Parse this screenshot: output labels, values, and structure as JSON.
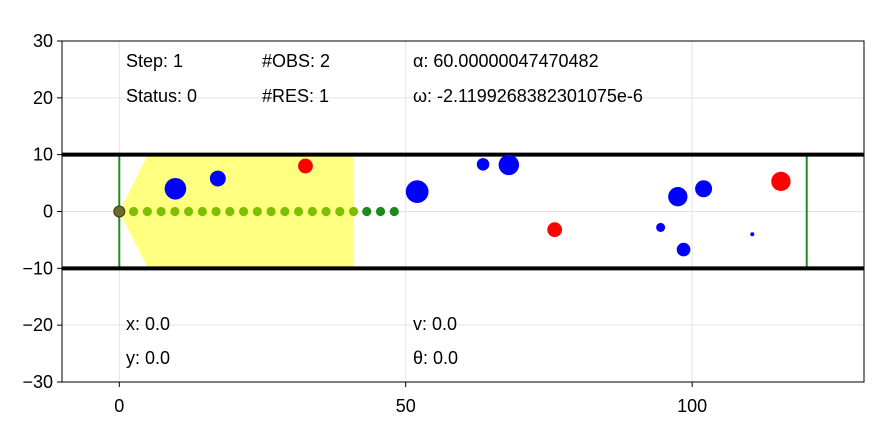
{
  "chart_data": {
    "type": "scatter",
    "xlim": [
      -10,
      130
    ],
    "ylim": [
      -30,
      30
    ],
    "x_ticks": [
      0,
      50,
      100
    ],
    "y_ticks": [
      30,
      20,
      10,
      0,
      -10,
      -20,
      -30
    ],
    "x_tick_labels": [
      "0",
      "50",
      "100"
    ],
    "y_tick_labels": [
      "30",
      "20",
      "10",
      "0",
      "−10",
      "−20",
      "−30"
    ],
    "grid": true,
    "walls": {
      "top_y": 10,
      "bottom_y": -10,
      "x_from": -10,
      "x_to": 130,
      "color": "#000000"
    },
    "start_line_x": 0,
    "goal_line_x": 120,
    "boundary_color": "#228b22",
    "view_region": {
      "color": "#ffff80",
      "points": [
        [
          0,
          0
        ],
        [
          5,
          10
        ],
        [
          41,
          10
        ],
        [
          41,
          -10
        ],
        [
          5,
          -10
        ]
      ]
    },
    "agent": {
      "x": 0,
      "y": 0,
      "color": "#6b6b2a"
    },
    "trajectory": {
      "light_color": "#7fbf00",
      "dark_color": "#1a8a1a",
      "light_x": [
        2.5,
        4.9,
        7.3,
        9.7,
        12.1,
        14.5,
        16.9,
        19.3,
        21.7,
        24.1,
        26.5,
        28.9,
        31.3,
        33.7,
        36.1,
        38.5,
        40.9
      ],
      "dark_x": [
        43.2,
        45.6,
        48.0
      ],
      "y": 0
    },
    "obstacles": [
      {
        "x": 9.8,
        "y": 4.0,
        "r": 1.9,
        "type": "blue"
      },
      {
        "x": 17.2,
        "y": 5.8,
        "r": 1.4,
        "type": "blue"
      },
      {
        "x": 32.5,
        "y": 8.0,
        "r": 1.3,
        "type": "red"
      },
      {
        "x": 52.0,
        "y": 3.5,
        "r": 2.0,
        "type": "blue"
      },
      {
        "x": 63.5,
        "y": 8.3,
        "r": 1.1,
        "type": "blue"
      },
      {
        "x": 68.0,
        "y": 8.2,
        "r": 1.8,
        "type": "blue"
      },
      {
        "x": 76.0,
        "y": -3.2,
        "r": 1.3,
        "type": "red"
      },
      {
        "x": 94.5,
        "y": -2.8,
        "r": 0.8,
        "type": "blue"
      },
      {
        "x": 97.5,
        "y": 2.6,
        "r": 1.7,
        "type": "blue"
      },
      {
        "x": 98.5,
        "y": -6.7,
        "r": 1.2,
        "type": "blue"
      },
      {
        "x": 102.0,
        "y": 4.0,
        "r": 1.5,
        "type": "blue"
      },
      {
        "x": 110.5,
        "y": -4.0,
        "r": 0.35,
        "type": "blue"
      },
      {
        "x": 115.5,
        "y": 5.3,
        "r": 1.7,
        "type": "red"
      }
    ],
    "obstacle_colors": {
      "blue": "#0000ff",
      "red": "#ff0000"
    },
    "annotations": {
      "step": "Step: 1",
      "obs": "#OBS: 2",
      "alpha": "α: 60.00000047470482",
      "status": "Status: 0",
      "res": "#RES: 1",
      "omega": "ω: -2.1199268382301075e-6",
      "x": "x: 0.0",
      "v": "v: 0.0",
      "y": "y: 0.0",
      "theta": "θ: 0.0"
    }
  }
}
